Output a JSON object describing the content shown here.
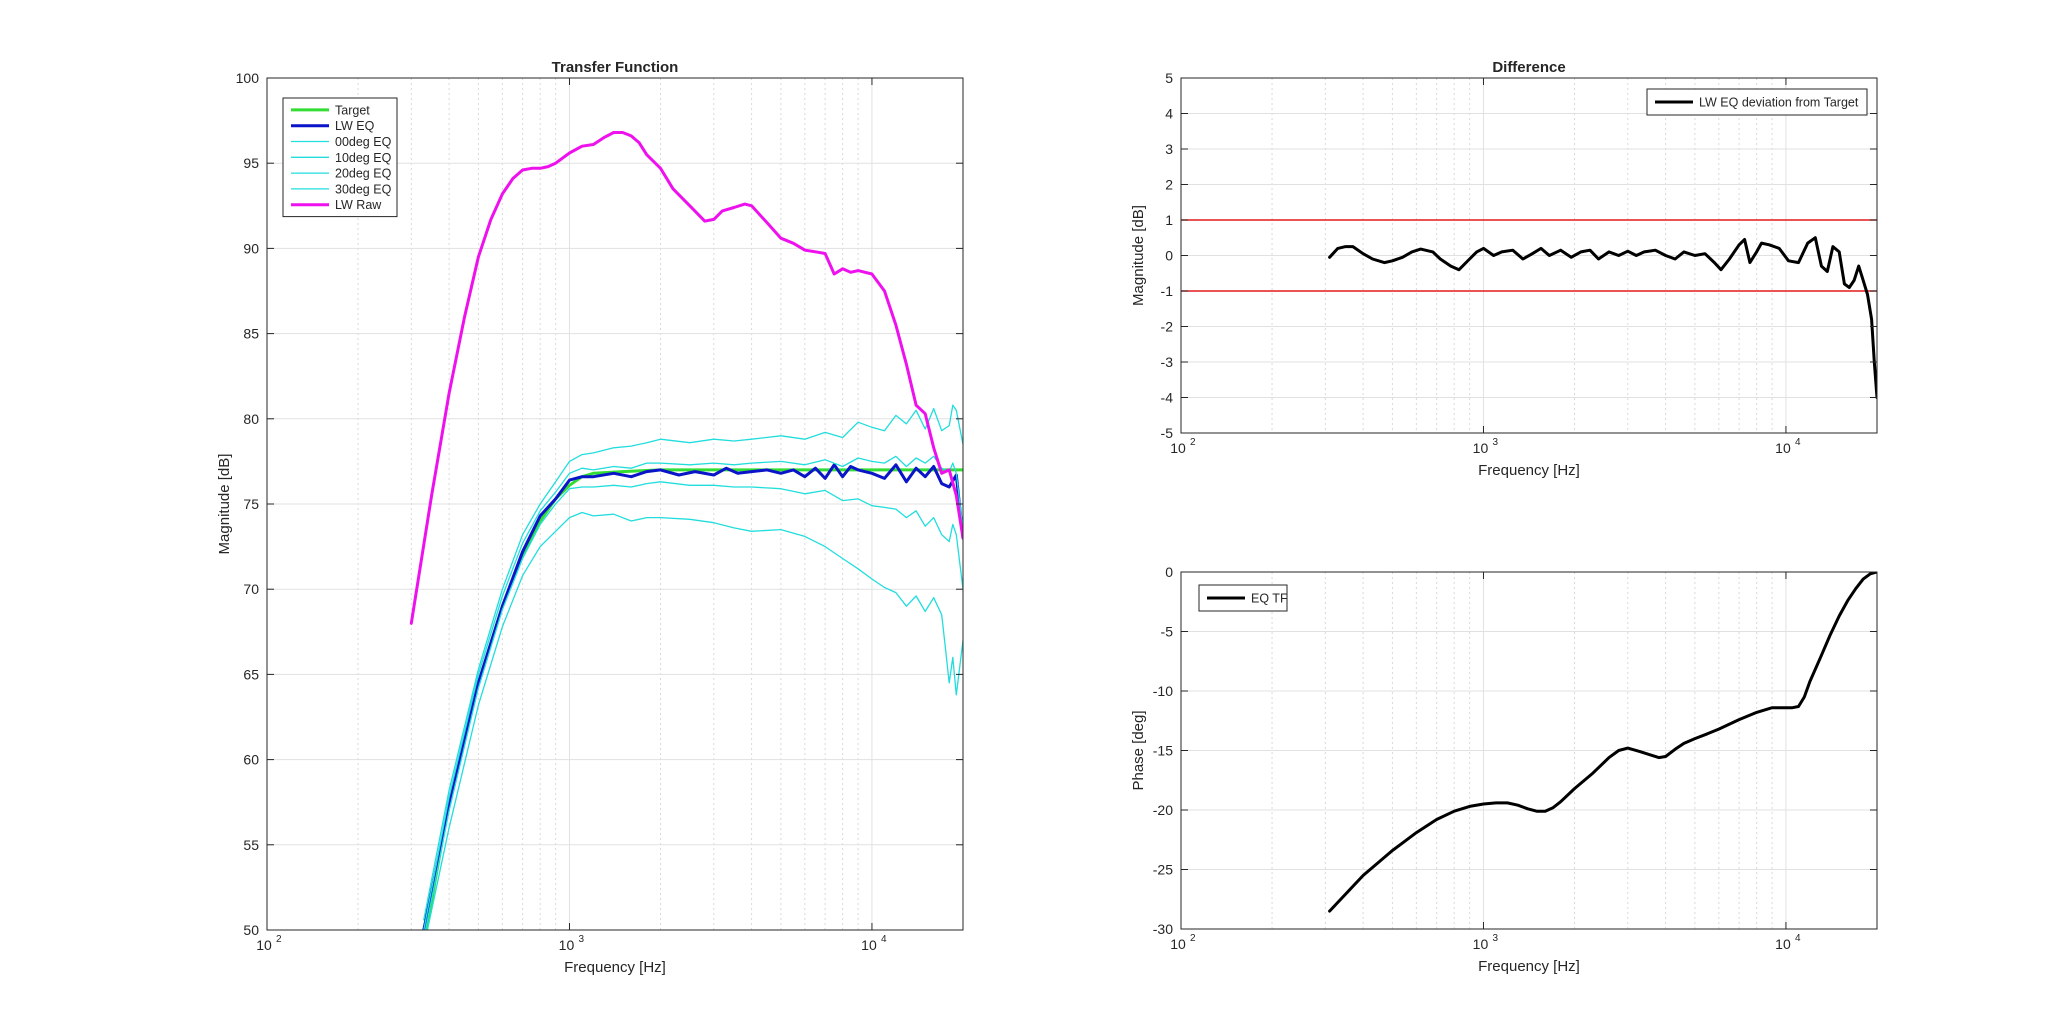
{
  "colors": {
    "target": "#33dd33",
    "lw_eq": "#0a14c8",
    "offaxis": "#22dddd",
    "lw_raw": "#ee11ee",
    "deviation": "#000000",
    "limit_lines": "#e41a1c",
    "eq_tf": "#000000"
  },
  "chart_data": [
    {
      "type": "line",
      "title": "Transfer Function",
      "xlabel": "Frequency [Hz]",
      "ylabel": "Magnitude [dB]",
      "xscale": "log",
      "xlim": [
        100,
        20000
      ],
      "ylim": [
        50,
        100
      ],
      "grid": true,
      "legend_position": "top-left",
      "x_ticks": [
        {
          "v": 100,
          "base": "10",
          "exp": "2"
        },
        {
          "v": 1000,
          "base": "10",
          "exp": "3"
        },
        {
          "v": 10000,
          "base": "10",
          "exp": "4"
        }
      ],
      "y_ticks": [
        50,
        55,
        60,
        65,
        70,
        75,
        80,
        85,
        90,
        95,
        100
      ],
      "series": [
        {
          "name": "Target",
          "color_key": "target",
          "width": 3,
          "x": [
            300,
            400,
            500,
            600,
            700,
            800,
            900,
            1000,
            1100,
            1200,
            1500,
            2000,
            3000,
            5000,
            8000,
            12000,
            20000
          ],
          "y": [
            45,
            57.5,
            64.5,
            69,
            72,
            74,
            75.3,
            76.1,
            76.6,
            76.8,
            76.9,
            77,
            77,
            77,
            77,
            77,
            77
          ]
        },
        {
          "name": "LW EQ",
          "color_key": "lw_eq",
          "width": 3,
          "x": [
            330,
            400,
            500,
            600,
            700,
            800,
            900,
            1000,
            1100,
            1200,
            1400,
            1600,
            1800,
            2000,
            2300,
            2600,
            3000,
            3300,
            3600,
            4000,
            4500,
            5000,
            5500,
            6000,
            6500,
            7000,
            7500,
            8000,
            8500,
            9000,
            10000,
            11000,
            12000,
            13000,
            14000,
            15000,
            16000,
            17000,
            18000,
            19000,
            20000
          ],
          "y": [
            50,
            57.3,
            64.5,
            69,
            72.2,
            74.3,
            75.3,
            76.4,
            76.6,
            76.6,
            76.8,
            76.6,
            76.9,
            77,
            76.7,
            76.9,
            76.7,
            77.1,
            76.8,
            76.9,
            77,
            76.8,
            77,
            76.6,
            77.1,
            76.5,
            77.3,
            76.6,
            77.2,
            77,
            76.8,
            76.5,
            77.3,
            76.3,
            77.1,
            76.6,
            77.2,
            76.2,
            76,
            76.7,
            73
          ]
        },
        {
          "name": "00deg EQ",
          "color_key": "offaxis",
          "width": 1.3,
          "x": [
            330,
            400,
            500,
            600,
            700,
            800,
            900,
            1000,
            1100,
            1200,
            1400,
            1600,
            1800,
            2000,
            2500,
            3000,
            3500,
            4000,
            5000,
            6000,
            7000,
            8000,
            9000,
            10000,
            11000,
            12000,
            13000,
            14000,
            15000,
            16000,
            17000,
            18000,
            18500,
            19000,
            20000
          ],
          "y": [
            50,
            57.8,
            65,
            69.6,
            72.7,
            74.6,
            75.7,
            76.8,
            77.1,
            77,
            77.2,
            77.1,
            77.4,
            77.4,
            77.3,
            77.4,
            77.3,
            77.4,
            77.5,
            77.3,
            77.6,
            77.2,
            77.7,
            77.5,
            77.4,
            77.8,
            77.2,
            77.7,
            77.4,
            77.8,
            77.1,
            76.9,
            77.4,
            76.8,
            73.5
          ]
        },
        {
          "name": "10deg EQ",
          "color_key": "offaxis",
          "width": 1.3,
          "x": [
            330,
            400,
            500,
            600,
            700,
            800,
            900,
            1000,
            1100,
            1200,
            1400,
            1600,
            1800,
            2000,
            2500,
            3000,
            3500,
            4000,
            5000,
            6000,
            7000,
            8000,
            9000,
            10000,
            11000,
            12000,
            13000,
            14000,
            15000,
            16000,
            17000,
            18000,
            18500,
            19000,
            20000
          ],
          "y": [
            50.6,
            58.2,
            65.3,
            70,
            73.2,
            75,
            76.3,
            77.5,
            77.9,
            78,
            78.3,
            78.4,
            78.6,
            78.8,
            78.6,
            78.8,
            78.7,
            78.8,
            79,
            78.8,
            79.2,
            78.9,
            79.8,
            79.5,
            79.3,
            80.2,
            79.7,
            80.5,
            79.4,
            80.6,
            79.3,
            79.6,
            80.8,
            80.5,
            78.5
          ]
        },
        {
          "name": "20deg EQ",
          "color_key": "offaxis",
          "width": 1.3,
          "x": [
            330,
            400,
            500,
            600,
            700,
            800,
            900,
            1000,
            1100,
            1200,
            1400,
            1600,
            1800,
            2000,
            2500,
            3000,
            3500,
            4000,
            5000,
            6000,
            7000,
            8000,
            9000,
            10000,
            11000,
            12000,
            13000,
            14000,
            15000,
            16000,
            17000,
            18000,
            18500,
            19000,
            20000
          ],
          "y": [
            49.5,
            57,
            64.2,
            68.8,
            71.8,
            73.8,
            75,
            75.9,
            76,
            76,
            76.1,
            76,
            76.2,
            76.3,
            76.1,
            76.1,
            76,
            76,
            75.9,
            75.6,
            75.8,
            75.2,
            75.3,
            74.9,
            74.8,
            74.7,
            74.2,
            74.6,
            73.7,
            74.2,
            73.2,
            72.8,
            73.8,
            73.2,
            70
          ]
        },
        {
          "name": "30deg EQ",
          "color_key": "offaxis",
          "width": 1.3,
          "x": [
            330,
            400,
            500,
            600,
            700,
            800,
            900,
            1000,
            1100,
            1200,
            1400,
            1600,
            1800,
            2000,
            2500,
            3000,
            3500,
            4000,
            5000,
            6000,
            7000,
            8000,
            9000,
            10000,
            11000,
            12000,
            13000,
            14000,
            15000,
            16000,
            17000,
            17500,
            18000,
            18500,
            19000,
            20000
          ],
          "y": [
            49,
            56,
            63.2,
            67.8,
            70.8,
            72.5,
            73.4,
            74.2,
            74.5,
            74.3,
            74.4,
            74,
            74.2,
            74.2,
            74.1,
            73.9,
            73.6,
            73.4,
            73.5,
            73.1,
            72.5,
            71.8,
            71.2,
            70.6,
            70.1,
            69.8,
            69,
            69.6,
            68.7,
            69.5,
            68.5,
            66.5,
            64.5,
            66,
            63.8,
            67
          ]
        },
        {
          "name": "LW Raw",
          "color_key": "lw_raw",
          "width": 3,
          "x": [
            300,
            350,
            400,
            450,
            500,
            550,
            600,
            650,
            700,
            750,
            800,
            850,
            900,
            1000,
            1100,
            1200,
            1300,
            1400,
            1500,
            1600,
            1700,
            1800,
            2000,
            2200,
            2500,
            2800,
            3000,
            3200,
            3500,
            3800,
            4000,
            4500,
            5000,
            5500,
            6000,
            6500,
            7000,
            7500,
            8000,
            8500,
            9000,
            10000,
            11000,
            12000,
            13000,
            14000,
            15000,
            16000,
            17000,
            18000,
            19000,
            20000
          ],
          "y": [
            68,
            75.5,
            81.5,
            86,
            89.5,
            91.7,
            93.2,
            94.1,
            94.6,
            94.7,
            94.7,
            94.8,
            95,
            95.6,
            96,
            96.1,
            96.5,
            96.8,
            96.8,
            96.6,
            96.2,
            95.5,
            94.7,
            93.5,
            92.5,
            91.6,
            91.7,
            92.2,
            92.4,
            92.6,
            92.5,
            91.5,
            90.6,
            90.3,
            89.9,
            89.8,
            89.7,
            88.5,
            88.8,
            88.6,
            88.7,
            88.5,
            87.5,
            85.5,
            83.2,
            80.8,
            80.3,
            78.3,
            76.8,
            77,
            75.5,
            73
          ]
        }
      ]
    },
    {
      "type": "line",
      "title": "Difference",
      "xlabel": "Frequency [Hz]",
      "ylabel": "Magnitude [dB]",
      "xscale": "log",
      "xlim": [
        100,
        20000
      ],
      "ylim": [
        -5,
        5
      ],
      "grid": true,
      "legend_position": "top-right",
      "x_ticks": [
        {
          "v": 100,
          "base": "10",
          "exp": "2"
        },
        {
          "v": 1000,
          "base": "10",
          "exp": "3"
        },
        {
          "v": 10000,
          "base": "10",
          "exp": "4"
        }
      ],
      "y_ticks": [
        -5,
        -4,
        -3,
        -2,
        -1,
        0,
        1,
        2,
        3,
        4,
        5
      ],
      "reference_lines": [
        1,
        -1
      ],
      "series": [
        {
          "name": "LW EQ deviation from Target",
          "color_key": "deviation",
          "width": 3,
          "x": [
            310,
            330,
            350,
            370,
            400,
            430,
            470,
            500,
            540,
            580,
            620,
            680,
            720,
            780,
            830,
            900,
            950,
            1000,
            1080,
            1150,
            1250,
            1350,
            1450,
            1550,
            1650,
            1800,
            1950,
            2100,
            2250,
            2400,
            2600,
            2800,
            3000,
            3200,
            3400,
            3700,
            4000,
            4300,
            4600,
            5000,
            5400,
            5800,
            6100,
            6500,
            7000,
            7300,
            7600,
            8000,
            8300,
            8800,
            9500,
            10200,
            11000,
            11800,
            12500,
            13100,
            13700,
            14300,
            15000,
            15600,
            16200,
            16800,
            17400,
            18000,
            18600,
            19200,
            19600,
            20000
          ],
          "y": [
            -0.05,
            0.2,
            0.25,
            0.25,
            0.05,
            -0.1,
            -0.2,
            -0.15,
            -0.05,
            0.1,
            0.18,
            0.1,
            -0.1,
            -0.3,
            -0.4,
            -0.1,
            0.1,
            0.2,
            0.0,
            0.1,
            0.15,
            -0.1,
            0.05,
            0.2,
            0.0,
            0.15,
            -0.05,
            0.1,
            0.15,
            -0.1,
            0.1,
            0.0,
            0.12,
            0.0,
            0.1,
            0.15,
            0.0,
            -0.1,
            0.1,
            0.0,
            0.05,
            -0.2,
            -0.4,
            -0.1,
            0.3,
            0.45,
            -0.2,
            0.1,
            0.35,
            0.3,
            0.2,
            -0.15,
            -0.2,
            0.35,
            0.5,
            -0.3,
            -0.45,
            0.25,
            0.1,
            -0.8,
            -0.9,
            -0.7,
            -0.3,
            -0.7,
            -1.1,
            -1.8,
            -3.0,
            -4.0
          ]
        }
      ]
    },
    {
      "type": "line",
      "title": "",
      "xlabel": "Frequency [Hz]",
      "ylabel": "Phase [deg]",
      "xscale": "log",
      "xlim": [
        100,
        20000
      ],
      "ylim": [
        -30,
        0
      ],
      "grid": true,
      "legend_position": "top-left",
      "x_ticks": [
        {
          "v": 100,
          "base": "10",
          "exp": "2"
        },
        {
          "v": 1000,
          "base": "10",
          "exp": "3"
        },
        {
          "v": 10000,
          "base": "10",
          "exp": "4"
        }
      ],
      "y_ticks": [
        -30,
        -25,
        -20,
        -15,
        -10,
        -5,
        0
      ],
      "series": [
        {
          "name": "EQ TF",
          "color_key": "eq_tf",
          "width": 3,
          "x": [
            310,
            400,
            500,
            600,
            700,
            800,
            900,
            1000,
            1100,
            1200,
            1300,
            1400,
            1500,
            1600,
            1700,
            1800,
            2000,
            2300,
            2600,
            2800,
            3000,
            3300,
            3600,
            3800,
            4000,
            4300,
            4600,
            5000,
            5500,
            6000,
            7000,
            8000,
            9000,
            10000,
            10500,
            11000,
            11500,
            12000,
            13000,
            14000,
            15000,
            16000,
            17000,
            18000,
            19000,
            20000
          ],
          "y": [
            -28.5,
            -25.5,
            -23.4,
            -21.9,
            -20.8,
            -20.1,
            -19.7,
            -19.5,
            -19.4,
            -19.4,
            -19.6,
            -19.9,
            -20.1,
            -20.1,
            -19.8,
            -19.3,
            -18.2,
            -16.9,
            -15.6,
            -15,
            -14.8,
            -15.1,
            -15.4,
            -15.6,
            -15.5,
            -14.9,
            -14.4,
            -14,
            -13.6,
            -13.2,
            -12.4,
            -11.8,
            -11.4,
            -11.4,
            -11.4,
            -11.3,
            -10.5,
            -9.2,
            -7.2,
            -5.3,
            -3.7,
            -2.4,
            -1.4,
            -0.6,
            -0.15,
            0
          ]
        }
      ]
    }
  ]
}
